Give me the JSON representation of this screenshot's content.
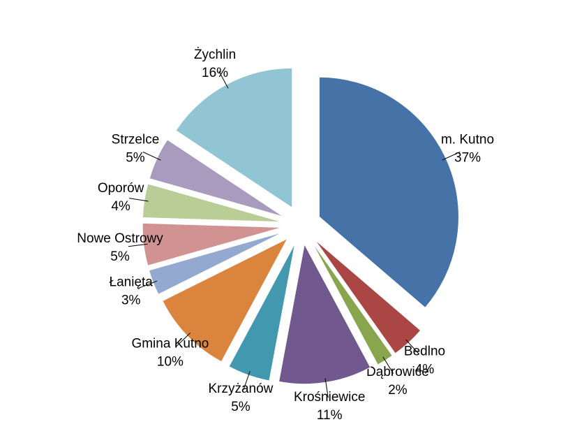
{
  "chart_data": {
    "type": "pie",
    "categories": [
      "m. Kutno",
      "Bedlno",
      "Dąbrowice",
      "Krośniewice",
      "Krzyżanów",
      "Gmina Kutno",
      "Łanięta",
      "Nowe Ostrowy",
      "Oporów",
      "Strzelce",
      "Żychlin"
    ],
    "values": [
      37,
      4,
      2,
      11,
      5,
      10,
      3,
      5,
      4,
      5,
      16
    ],
    "value_labels": [
      "37%",
      "4%",
      "2%",
      "11%",
      "5%",
      "10%",
      "3%",
      "5%",
      "4%",
      "5%",
      "16%"
    ],
    "colors": [
      "#4572A7",
      "#AA4643",
      "#89A54E",
      "#71588F",
      "#4198AF",
      "#DB843D",
      "#93A9CF",
      "#D19392",
      "#B9CD96",
      "#A99BBD",
      "#92C5D3"
    ]
  }
}
